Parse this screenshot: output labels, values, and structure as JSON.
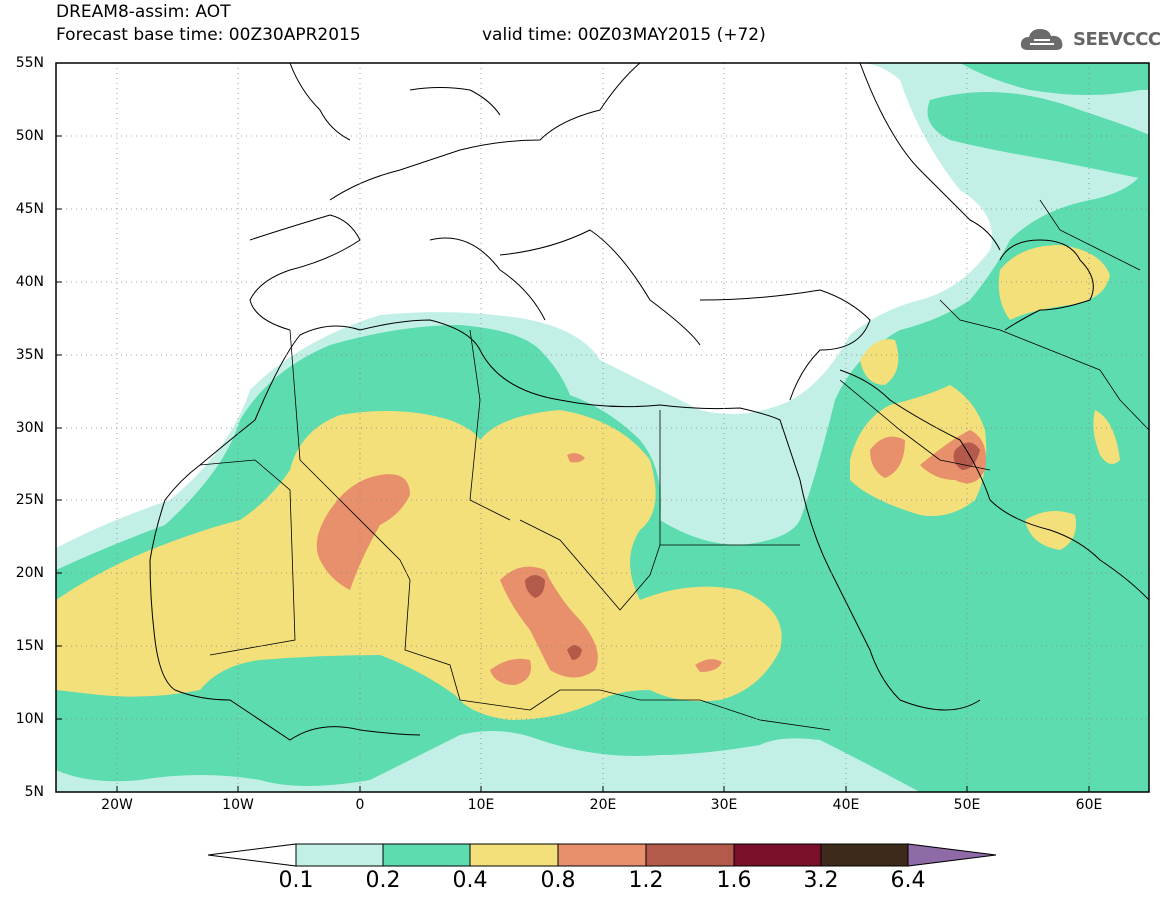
{
  "header": {
    "line1": "DREAM8-assim: AOT",
    "line2": "Forecast base time: 00Z30APR2015",
    "valid": "valid time: 00Z03MAY2015 (+72)",
    "logo_text": "SEEVCCC"
  },
  "map": {
    "variable": "AOT",
    "lon_range": [
      -25,
      65
    ],
    "lat_range": [
      5,
      55
    ],
    "lat_ticks": [
      "55N",
      "50N",
      "45N",
      "40N",
      "35N",
      "30N",
      "25N",
      "20N",
      "15N",
      "10N",
      "5N"
    ],
    "lon_ticks": [
      "20W",
      "10W",
      "0",
      "10E",
      "20E",
      "30E",
      "40E",
      "50E",
      "60E"
    ],
    "grid": "dotted"
  },
  "colorbar": {
    "levels": [
      "0.1",
      "0.2",
      "0.4",
      "0.8",
      "1.2",
      "1.6",
      "3.2",
      "6.4"
    ],
    "colors": [
      "#c2f0e6",
      "#5ddcb0",
      "#f3e07a",
      "#e8906c",
      "#b35a4a",
      "#7a0f2a",
      "#3d2a1a",
      "#8e6aa6"
    ],
    "under_color": "#ffffff",
    "over_color": "#8e6aa6"
  }
}
